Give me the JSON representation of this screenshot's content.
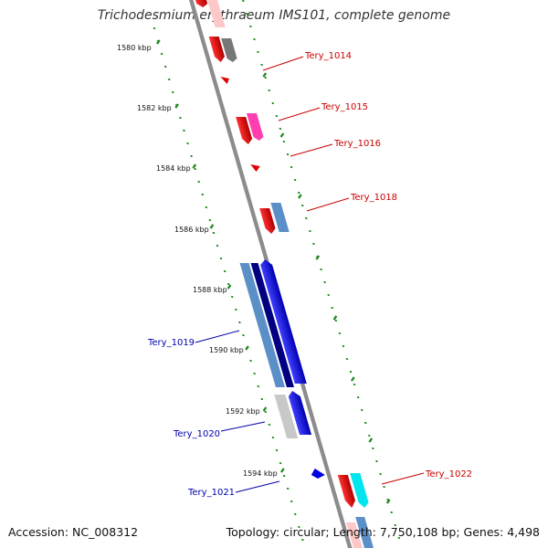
{
  "title": "Trichodesmium erythraeum IMS101, complete genome",
  "footer": {
    "accession": "Accession: NC_008312",
    "summary": "Topology: circular; Length: 7,750,108 bp; Genes: 4,498"
  },
  "ticks": [
    "1580 kbp",
    "1582 kbp",
    "1584 kbp",
    "1586 kbp",
    "1588 kbp",
    "1590 kbp",
    "1592 kbp",
    "1594 kbp"
  ],
  "labels": {
    "tery_1014": "Tery_1014",
    "tery_1015": "Tery_1015",
    "tery_1016": "Tery_1016",
    "tery_1018": "Tery_1018",
    "tery_1019": "Tery_1019",
    "tery_1020": "Tery_1020",
    "tery_1021": "Tery_1021",
    "tery_1022": "Tery_1022"
  },
  "colors": {
    "forward_label": "#cc0000",
    "reverse_label": "#0000aa",
    "tick_green": "#228b22",
    "backbone": "#8c8c8c"
  }
}
